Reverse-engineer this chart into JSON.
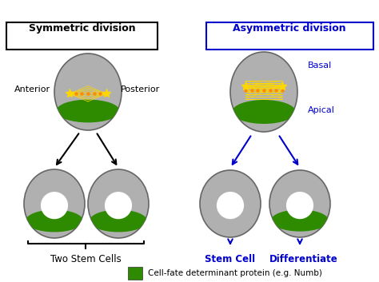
{
  "bg_color": "#ffffff",
  "gray_cell": "#b0b0b0",
  "green_cap": "#2e8b00",
  "white_inner": "#ffffff",
  "yellow_spindle": "#ffd700",
  "orange_dots": "#ff8c00",
  "black_arrow": "#000000",
  "blue_arrow": "#0000cc",
  "blue_text": "#0000cc",
  "black_text": "#000000",
  "box_border": "#000000",
  "sym_title": "Symmetric division",
  "asym_title": "Asymmetric division",
  "anterior_label": "Anterior",
  "posterior_label": "Posterior",
  "basal_label": "Basal",
  "apical_label": "Apical",
  "two_stem_label": "Two Stem Cells",
  "stem_cell_label": "Stem Cell",
  "differentiate_label": "Differentiate",
  "legend_label": "Cell-fate determinant protein (e.g. Numb)"
}
